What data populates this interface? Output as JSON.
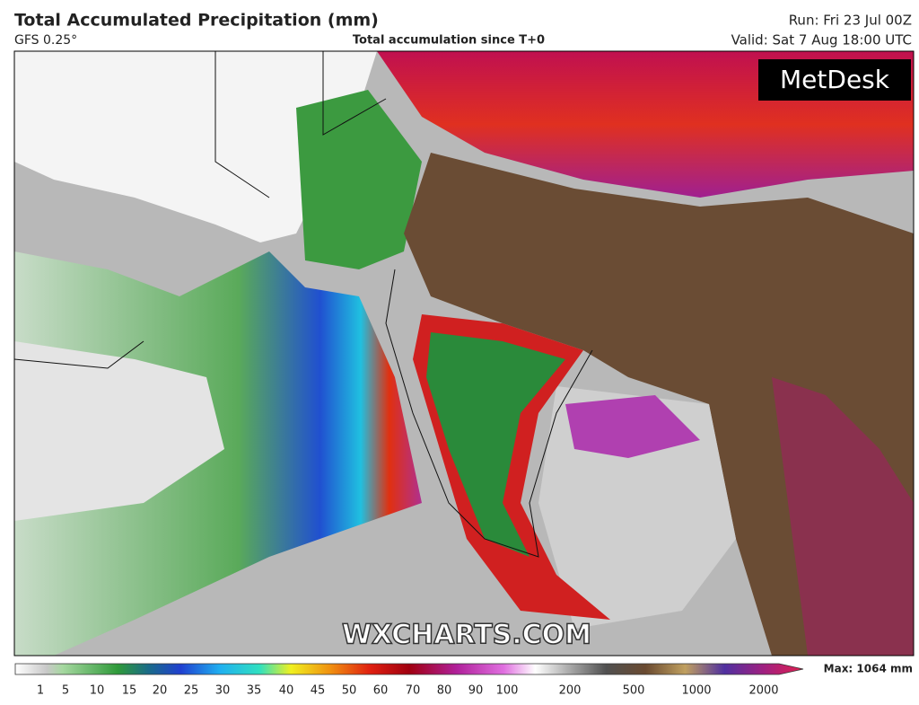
{
  "header": {
    "title": "Total Accumulated Precipitation (mm)",
    "model": "GFS 0.25°",
    "subtitle": "Total accumulation since T+0",
    "run": "Run: Fri 23 Jul 00Z",
    "valid": "Valid: Sat 7 Aug 18:00 UTC"
  },
  "map": {
    "logo": "MetDesk",
    "watermark": "WXCHARTS.COM"
  },
  "legend": {
    "ticks": [
      1,
      5,
      10,
      15,
      20,
      25,
      30,
      35,
      40,
      45,
      50,
      60,
      70,
      80,
      90,
      100,
      200,
      500,
      1000,
      2000
    ],
    "max": "Max: 1064 mm"
  }
}
